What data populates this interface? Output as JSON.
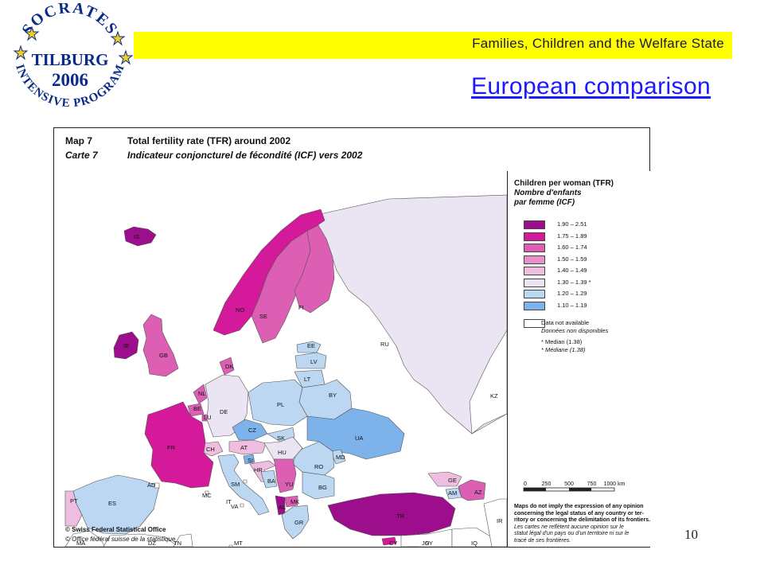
{
  "logo": {
    "top_text": "SOCRATES",
    "middle_text": "TILBURG",
    "year": "2006",
    "bottom_text": "INTENSIVE PROGRAM"
  },
  "banner": {
    "text": "Families, Children and the Welfare State"
  },
  "title": "European comparison",
  "slide_number": "10",
  "colors": {
    "banner": "#ffff00",
    "title": "#1a1aff",
    "logo": "#0a2a8a",
    "star": "#f0d020"
  },
  "map": {
    "header": {
      "label_en": "Map 7",
      "label_fr": "Carte 7",
      "title_en": "Total fertility rate (TFR) around 2002",
      "title_fr": "Indicateur conjoncturel de fécondité (ICF) vers 2002"
    },
    "legend": {
      "title_en": "Children per woman (TFR)",
      "title_fr_1": "Nombre d'enfants",
      "title_fr_2": "par femme (ICF)",
      "classes": [
        {
          "label": "1.90  –  2.51",
          "color": "#9c0e8c"
        },
        {
          "label": "1.75  –  1.89",
          "color": "#d4199a"
        },
        {
          "label": "1.60  –  1.74",
          "color": "#dc5fb4"
        },
        {
          "label": "1.50  –  1.59",
          "color": "#e78fcb"
        },
        {
          "label": "1.40  –  1.49",
          "color": "#efbde0"
        },
        {
          "label": "1.30  –  1.39 *",
          "color": "#ebe4f2"
        },
        {
          "label": "1.20  –  1.29",
          "color": "#bcd7f2"
        },
        {
          "label": "1.10  –  1.19",
          "color": "#7eb2ea"
        }
      ],
      "na_en": "Data not available",
      "na_fr": "Données non disponibles",
      "median_en": "* Median (1.38)",
      "median_fr": "* Médiane (1.38)",
      "scale": {
        "ticks": [
          "0",
          "250",
          "500",
          "750",
          "1000 km"
        ]
      },
      "disclaimer_en": [
        "Maps do not imply the expression of any opinion",
        "concerning the legal status of any country or ter-",
        "ritory or concerning the delimitation of its frontiers."
      ],
      "disclaimer_fr": [
        "Les cartes ne reflètent aucune opinion sur le",
        "statut légal d'un pays ou d'un territoire ni sur le",
        "tracé de ses frontières."
      ]
    },
    "credit_en": "© Swiss Federal Statistical Office",
    "credit_fr": "© Office fédéral suisse de la statistique",
    "countries": [
      {
        "code": "IS",
        "color": "#9c0e8c"
      },
      {
        "code": "NO",
        "color": "#d4199a"
      },
      {
        "code": "SE",
        "color": "#dc5fb4"
      },
      {
        "code": "FI",
        "color": "#dc5fb4"
      },
      {
        "code": "RU",
        "color": "#ebe4f2"
      },
      {
        "code": "KZ",
        "color": "#ffffff"
      },
      {
        "code": "EE",
        "color": "#bcd7f2"
      },
      {
        "code": "LV",
        "color": "#bcd7f2"
      },
      {
        "code": "LT",
        "color": "#bcd7f2"
      },
      {
        "code": "BY",
        "color": "#bcd7f2"
      },
      {
        "code": "UA",
        "color": "#7eb2ea"
      },
      {
        "code": "MD",
        "color": "#bcd7f2"
      },
      {
        "code": "RO",
        "color": "#bcd7f2"
      },
      {
        "code": "BG",
        "color": "#bcd7f2"
      },
      {
        "code": "IE",
        "color": "#9c0e8c"
      },
      {
        "code": "GB",
        "color": "#dc5fb4"
      },
      {
        "code": "NL",
        "color": "#dc5fb4"
      },
      {
        "code": "BE",
        "color": "#dc5fb4"
      },
      {
        "code": "LU",
        "color": "#dc5fb4"
      },
      {
        "code": "DK",
        "color": "#dc5fb4"
      },
      {
        "code": "DE",
        "color": "#ebe4f2"
      },
      {
        "code": "PL",
        "color": "#bcd7f2"
      },
      {
        "code": "CZ",
        "color": "#7eb2ea"
      },
      {
        "code": "SK",
        "color": "#bcd7f2"
      },
      {
        "code": "AT",
        "color": "#efbde0"
      },
      {
        "code": "HU",
        "color": "#ebe4f2"
      },
      {
        "code": "CH",
        "color": "#efbde0"
      },
      {
        "code": "FR",
        "color": "#d4199a"
      },
      {
        "code": "ES",
        "color": "#bcd7f2"
      },
      {
        "code": "PT",
        "color": "#efbde0"
      },
      {
        "code": "IT",
        "color": "#bcd7f2"
      },
      {
        "code": "SI",
        "color": "#7eb2ea"
      },
      {
        "code": "HR",
        "color": "#efbde0"
      },
      {
        "code": "BA",
        "color": "#bcd7f2"
      },
      {
        "code": "YU",
        "color": "#dc5fb4"
      },
      {
        "code": "MK",
        "color": "#dc5fb4"
      },
      {
        "code": "AL",
        "color": "#9c0e8c"
      },
      {
        "code": "GR",
        "color": "#bcd7f2"
      },
      {
        "code": "TR",
        "color": "#9c0e8c"
      },
      {
        "code": "GE",
        "color": "#efbde0"
      },
      {
        "code": "AM",
        "color": "#bcd7f2"
      },
      {
        "code": "AZ",
        "color": "#dc5fb4"
      },
      {
        "code": "CY",
        "color": "#d4199a"
      },
      {
        "code": "MC",
        "color": "#ffffff"
      },
      {
        "code": "SM",
        "color": "#ffffff"
      },
      {
        "code": "VA",
        "color": "#ffffff"
      },
      {
        "code": "AD",
        "color": "#ffffff"
      },
      {
        "code": "MA",
        "color": "#ffffff"
      },
      {
        "code": "DZ",
        "color": "#ffffff"
      },
      {
        "code": "TN",
        "color": "#ffffff"
      },
      {
        "code": "MT",
        "color": "#ffffff"
      },
      {
        "code": "SY",
        "color": "#ffffff"
      },
      {
        "code": "IQ",
        "color": "#ffffff"
      },
      {
        "code": "IR",
        "color": "#ffffff"
      },
      {
        "code": "JO",
        "color": "#ffffff"
      }
    ]
  }
}
